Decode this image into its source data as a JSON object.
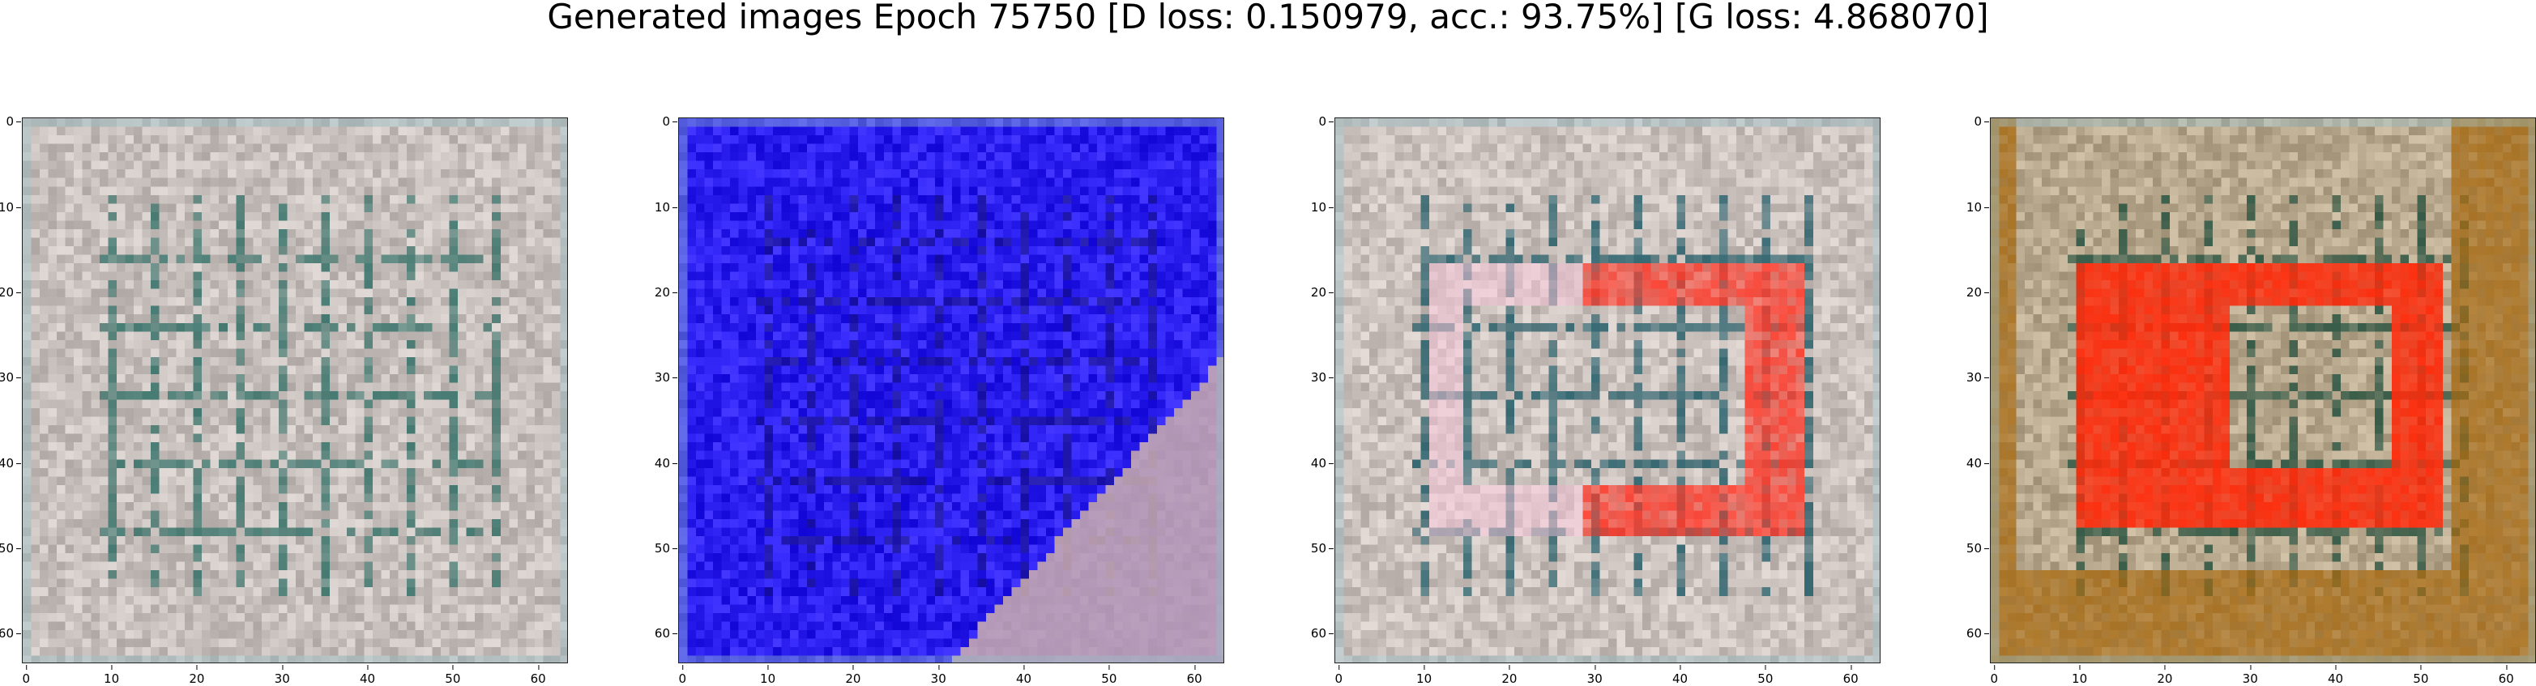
{
  "figure": {
    "title": "Generated images Epoch 75750 [D loss: 0.150979, acc.: 93.75%] [G loss: 4.868070]",
    "axis": {
      "y_ticks": [
        "0",
        "10",
        "20",
        "30",
        "40",
        "50",
        "60"
      ],
      "x_ticks": [
        "0",
        "10",
        "20",
        "30",
        "40",
        "50",
        "60"
      ],
      "range": [
        0,
        63
      ]
    },
    "panels": [
      {
        "name": "generated-image-1",
        "palette": {
          "base": "#c8c0bc",
          "line": "#2f6f66",
          "accent": "#b9c6c8"
        }
      },
      {
        "name": "generated-image-2",
        "palette": {
          "base": "#2b1ff0",
          "line": "#15106e",
          "accent": "#d7b9aa"
        }
      },
      {
        "name": "generated-image-3",
        "palette": {
          "base": "#cbc2be",
          "line": "#1d5a66",
          "accent": "#ff3a2a"
        }
      },
      {
        "name": "generated-image-4",
        "palette": {
          "base": "#b9a98f",
          "line": "#1e4d3b",
          "accent": "#ff2a0a",
          "edge": "#a86a10"
        }
      }
    ]
  }
}
